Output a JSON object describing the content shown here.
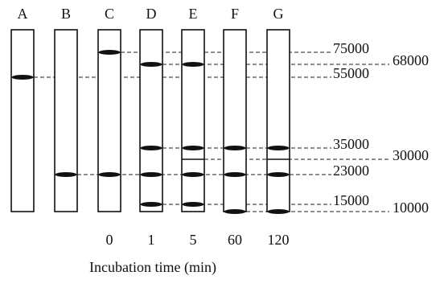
{
  "lanes": [
    {
      "label": "A"
    },
    {
      "label": "B"
    },
    {
      "label": "C",
      "time": "0"
    },
    {
      "label": "D",
      "time": "1"
    },
    {
      "label": "E",
      "time": "5"
    },
    {
      "label": "F",
      "time": "60"
    },
    {
      "label": "G",
      "time": "120"
    }
  ],
  "axis_label": "Incubation time (min)",
  "markers": [
    "75000",
    "68000",
    "55000",
    "35000",
    "30000",
    "23000",
    "15000",
    "10000"
  ]
}
